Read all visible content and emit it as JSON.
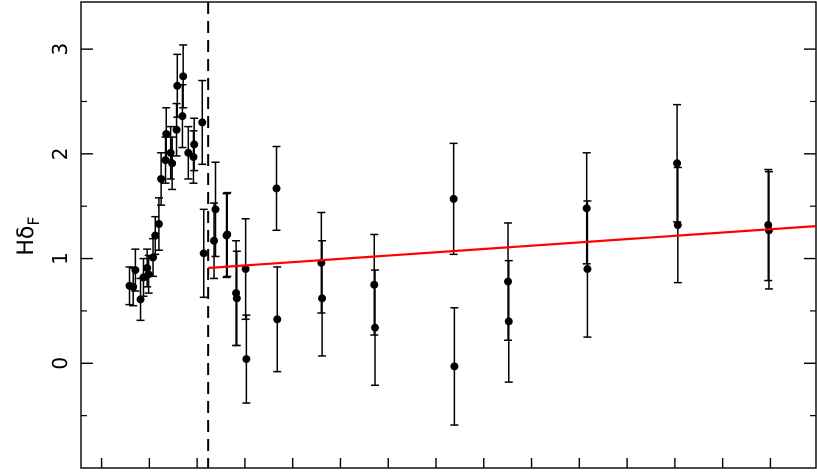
{
  "chart_data": {
    "type": "scatter",
    "title": "",
    "xlabel": "",
    "ylabel": "Hδ",
    "ylabel_subscript": "F",
    "xlim": [
      0,
      100
    ],
    "ylim": [
      -1,
      3.45
    ],
    "y_ticks": [
      0,
      1,
      2,
      3
    ],
    "y_tick_labels": [
      "0",
      "1",
      "2",
      "3"
    ],
    "y_minor_ticks": [
      -0.5,
      0.5,
      1.5,
      2.5
    ],
    "x_ticks": [
      2.8,
      9.3,
      15.8,
      22.3,
      28.8,
      35.3,
      41.8,
      48.3,
      54.8,
      61.3,
      67.8,
      74.3,
      80.8,
      87.3,
      93.8
    ],
    "x_tick_labels": [],
    "grid": false,
    "legend": "none",
    "vline": {
      "x": 17.3,
      "style": "dashed",
      "color": "#000000"
    },
    "fit_line": {
      "x": [
        17.3,
        100
      ],
      "y": [
        0.91,
        1.31
      ],
      "color": "#ff0000"
    },
    "points": [
      {
        "x": 6.6,
        "y": 0.74,
        "err": 0.18
      },
      {
        "x": 7.1,
        "y": 0.73,
        "err": 0.18
      },
      {
        "x": 7.4,
        "y": 0.89,
        "err": 0.2
      },
      {
        "x": 8.1,
        "y": 0.61,
        "err": 0.2
      },
      {
        "x": 8.5,
        "y": 0.82,
        "err": 0.18
      },
      {
        "x": 9.0,
        "y": 0.91,
        "err": 0.18
      },
      {
        "x": 9.2,
        "y": 0.85,
        "err": 0.18
      },
      {
        "x": 9.8,
        "y": 1.01,
        "err": 0.18
      },
      {
        "x": 10.1,
        "y": 1.22,
        "err": 0.18
      },
      {
        "x": 10.6,
        "y": 1.33,
        "err": 0.25
      },
      {
        "x": 10.9,
        "y": 1.76,
        "err": 0.25
      },
      {
        "x": 11.5,
        "y": 1.94,
        "err": 0.22
      },
      {
        "x": 11.6,
        "y": 2.19,
        "err": 0.25
      },
      {
        "x": 12.4,
        "y": 1.91,
        "err": 0.25
      },
      {
        "x": 12.2,
        "y": 2.01,
        "err": 0.25
      },
      {
        "x": 13.0,
        "y": 2.23,
        "err": 0.25
      },
      {
        "x": 13.1,
        "y": 2.65,
        "err": 0.3
      },
      {
        "x": 13.9,
        "y": 2.74,
        "err": 0.3
      },
      {
        "x": 13.8,
        "y": 2.36,
        "err": 0.3
      },
      {
        "x": 14.6,
        "y": 2.01,
        "err": 0.25
      },
      {
        "x": 15.3,
        "y": 1.97,
        "err": 0.25
      },
      {
        "x": 15.4,
        "y": 2.09,
        "err": 0.25
      },
      {
        "x": 16.5,
        "y": 2.3,
        "err": 0.4
      },
      {
        "x": 16.7,
        "y": 1.05,
        "err": 0.42
      },
      {
        "x": 18.1,
        "y": 1.17,
        "err": 0.36
      },
      {
        "x": 18.3,
        "y": 1.47,
        "err": 0.45
      },
      {
        "x": 19.8,
        "y": 1.22,
        "err": 0.4
      },
      {
        "x": 19.9,
        "y": 1.23,
        "err": 0.4
      },
      {
        "x": 21.1,
        "y": 0.67,
        "err": 0.5
      },
      {
        "x": 21.2,
        "y": 0.62,
        "err": 0.45
      },
      {
        "x": 22.4,
        "y": 0.9,
        "err": 0.48
      },
      {
        "x": 22.5,
        "y": 0.04,
        "err": 0.42
      },
      {
        "x": 26.6,
        "y": 1.67,
        "err": 0.4
      },
      {
        "x": 26.7,
        "y": 0.42,
        "err": 0.5
      },
      {
        "x": 32.7,
        "y": 0.96,
        "err": 0.48
      },
      {
        "x": 32.8,
        "y": 0.62,
        "err": 0.55
      },
      {
        "x": 39.9,
        "y": 0.75,
        "err": 0.48
      },
      {
        "x": 40.0,
        "y": 0.34,
        "err": 0.55
      },
      {
        "x": 50.7,
        "y": 1.57,
        "err": 0.53
      },
      {
        "x": 50.8,
        "y": -0.03,
        "err": 0.56
      },
      {
        "x": 58.1,
        "y": 0.78,
        "err": 0.56
      },
      {
        "x": 58.2,
        "y": 0.4,
        "err": 0.58
      },
      {
        "x": 68.8,
        "y": 1.48,
        "err": 0.53
      },
      {
        "x": 68.9,
        "y": 0.9,
        "err": 0.65
      },
      {
        "x": 81.1,
        "y": 1.91,
        "err": 0.56
      },
      {
        "x": 81.2,
        "y": 1.32,
        "err": 0.55
      },
      {
        "x": 93.5,
        "y": 1.32,
        "err": 0.53
      },
      {
        "x": 93.6,
        "y": 1.27,
        "err": 0.56
      }
    ]
  }
}
